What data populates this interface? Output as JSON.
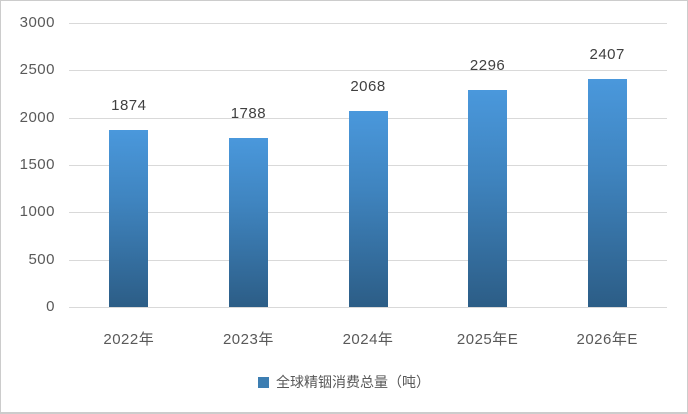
{
  "chart_data": {
    "type": "bar",
    "categories": [
      "2022年",
      "2023年",
      "2024年",
      "2025年E",
      "2026年E"
    ],
    "values": [
      1874,
      1788,
      2068,
      2296,
      2407
    ],
    "series_name": "全球精铟消费总量（吨）",
    "title": "",
    "xlabel": "",
    "ylabel": "",
    "ylim": [
      0,
      3000
    ],
    "yticks": [
      0,
      500,
      1000,
      1500,
      2000,
      2500,
      3000
    ],
    "grid": true,
    "data_labels": true,
    "legend_position": "bottom-center",
    "colors": {
      "bar_top": "#4a98dc",
      "bar_mid": "#3f84bf",
      "bar_bottom": "#2c5d86",
      "legend_marker": "#3d7eb2",
      "gridline": "#d9d9d9",
      "axis_text": "#595959",
      "data_label_text": "#404040",
      "frame_border": "#cccccc",
      "background": "#ffffff"
    }
  }
}
